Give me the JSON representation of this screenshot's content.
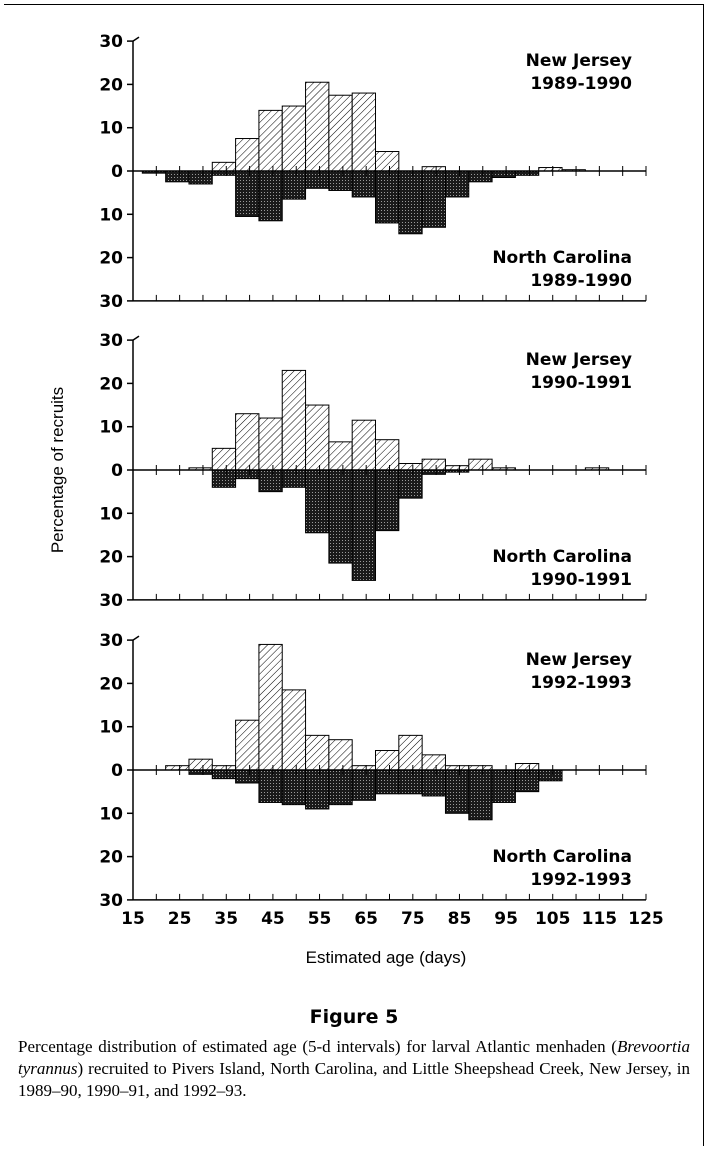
{
  "figure": {
    "title": "Figure 5",
    "caption_parts": [
      "Percentage distribution of estimated age (5-d intervals) for larval Atlantic menhaden (",
      "Brevoortia tyrannus",
      ") recruited to Pivers Island, North Carolina, and Little Sheepshead Creek, New Jersey, in 1989–90, 1990–91, and 1992–93."
    ]
  },
  "chart_data": {
    "type": "bar",
    "xlabel": "Estimated age (days)",
    "ylabel": "Percentage of recruits",
    "x_ticks": [
      "15",
      "25",
      "35",
      "45",
      "55",
      "65",
      "75",
      "85",
      "95",
      "105",
      "115",
      "125"
    ],
    "xlim": [
      15,
      125
    ],
    "bin_width": 5,
    "bin_starts": [
      17,
      22,
      27,
      32,
      37,
      42,
      47,
      52,
      57,
      62,
      67,
      72,
      77,
      82,
      87,
      92,
      97,
      102,
      107,
      112,
      117
    ],
    "y_ticks": [
      "30",
      "20",
      "10",
      "0",
      "10",
      "20",
      "30"
    ],
    "ylim": [
      -30,
      30
    ],
    "colors": {
      "new_jersey_fill": "#ffffff",
      "north_carolina_fill": "#333333",
      "hatch": "#000000"
    },
    "panels": [
      {
        "label_top": [
          "New Jersey",
          "1989-1990"
        ],
        "label_bottom": [
          "North Carolina",
          "1989-1990"
        ],
        "series": [
          {
            "name": "New Jersey 1989-1990",
            "direction": "up",
            "values": [
              0,
              0,
              0,
              2,
              7.5,
              14,
              15,
              20.5,
              17.5,
              18,
              4.5,
              0,
              1,
              0,
              0,
              0,
              0,
              0.8,
              0.3,
              0,
              0
            ]
          },
          {
            "name": "North Carolina 1989-1990",
            "direction": "down",
            "values": [
              0.5,
              2.5,
              3,
              1,
              10.5,
              11.5,
              6.5,
              4,
              4.5,
              6,
              12,
              14.5,
              13,
              6,
              2.5,
              1.5,
              1,
              0,
              0,
              0,
              0
            ]
          }
        ]
      },
      {
        "label_top": [
          "New Jersey",
          "1990-1991"
        ],
        "label_bottom": [
          "North Carolina",
          "1990-1991"
        ],
        "series": [
          {
            "name": "New Jersey 1990-1991",
            "direction": "up",
            "values": [
              0,
              0,
              0.5,
              5,
              13,
              12,
              23,
              15,
              6.5,
              11.5,
              7,
              1.5,
              2.5,
              1,
              2.5,
              0.5,
              0,
              0,
              0,
              0.5,
              0
            ]
          },
          {
            "name": "North Carolina 1990-1991",
            "direction": "down",
            "values": [
              0,
              0,
              0,
              4,
              2,
              5,
              4,
              14.5,
              21.5,
              25.5,
              14,
              6.5,
              1,
              0.5,
              0,
              0,
              0,
              0,
              0,
              0,
              0
            ]
          }
        ]
      },
      {
        "label_top": [
          "New Jersey",
          "1992-1993"
        ],
        "label_bottom": [
          "North Carolina",
          "1992-1993"
        ],
        "series": [
          {
            "name": "New Jersey 1992-1993",
            "direction": "up",
            "values": [
              0,
              1,
              2.5,
              1,
              11.5,
              29,
              18.5,
              8,
              7,
              1,
              4.5,
              8,
              3.5,
              1,
              1,
              0,
              1.5,
              0,
              0,
              0,
              0
            ]
          },
          {
            "name": "North Carolina 1992-1993",
            "direction": "down",
            "values": [
              0,
              0,
              1,
              2,
              3,
              7.5,
              8,
              9,
              8,
              7,
              5.5,
              5.5,
              6,
              10,
              11.5,
              7.5,
              5,
              2.5,
              0,
              0,
              0
            ]
          }
        ]
      }
    ]
  }
}
